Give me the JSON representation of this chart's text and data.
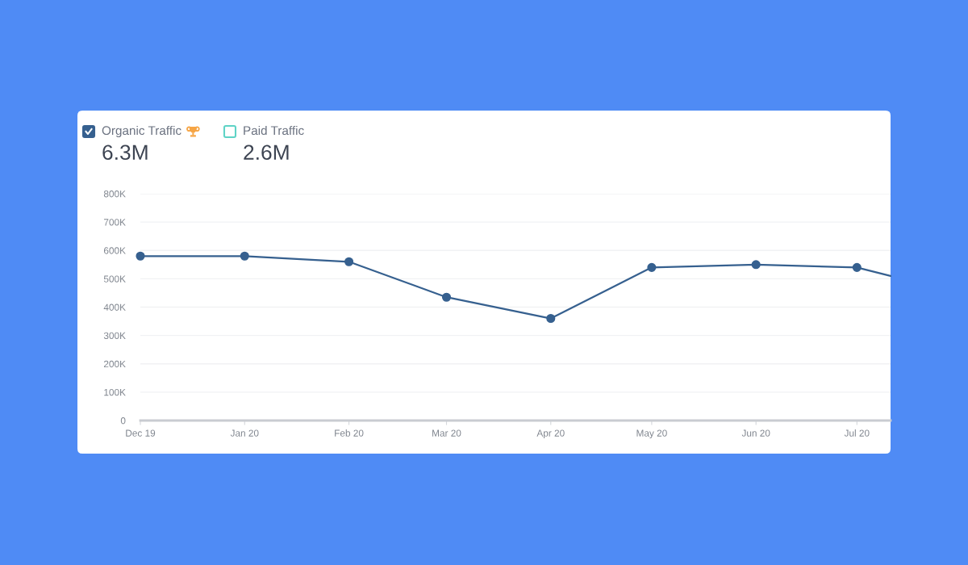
{
  "chart_data": {
    "type": "line",
    "x": [
      "2019-12",
      "2020-01",
      "2020-02",
      "2020-03",
      "2020-04",
      "2020-05",
      "2020-06",
      "2020-07"
    ],
    "series": [
      {
        "name": "Organic Traffic",
        "color": "#36608f",
        "values": [
          580000,
          580000,
          560000,
          435000,
          360000,
          540000,
          550000,
          540000
        ]
      },
      {
        "color": "#36608f",
        "x": [
          "2020-07",
          "2020-07-11"
        ],
        "values": [
          540000,
          510000
        ],
        "marker": "none"
      },
      {
        "name": "Paid Traffic",
        "color": "#5fd3c6",
        "values": [
          null,
          null,
          null,
          null,
          null,
          null,
          null,
          null
        ]
      }
    ],
    "annotations": [
      "6.3M",
      "2.6M"
    ],
    "xlim": [
      "2019-12",
      "2020-07-11"
    ],
    "xticks": [
      {
        "value": "2019-12",
        "label": "Dec 19"
      },
      {
        "value": "2020-01",
        "label": "Jan 20"
      },
      {
        "value": "2020-02",
        "label": "Feb 20"
      },
      {
        "value": "2020-03",
        "label": "Mar 20"
      },
      {
        "value": "2020-04",
        "label": "Apr 20"
      },
      {
        "value": "2020-05",
        "label": "May 20"
      },
      {
        "value": "2020-06",
        "label": "Jun 20"
      },
      {
        "value": "2020-07",
        "label": "Jul 20"
      }
    ],
    "ylim": [
      0,
      800000
    ],
    "yticks": [
      0,
      {
        "value": 100000,
        "label": "100K"
      },
      {
        "value": 200000,
        "label": "200K"
      },
      {
        "value": 300000,
        "label": "300K"
      },
      {
        "value": 400000,
        "label": "400K"
      },
      {
        "value": 500000,
        "label": "500K"
      },
      {
        "value": 600000,
        "label": "600K"
      },
      {
        "value": 700000,
        "label": "700K"
      },
      {
        "value": 800000,
        "label": "800K"
      }
    ],
    "grid": "y",
    "legend": "top left",
    "marker": "circle",
    "line_style": "solid"
  }
}
